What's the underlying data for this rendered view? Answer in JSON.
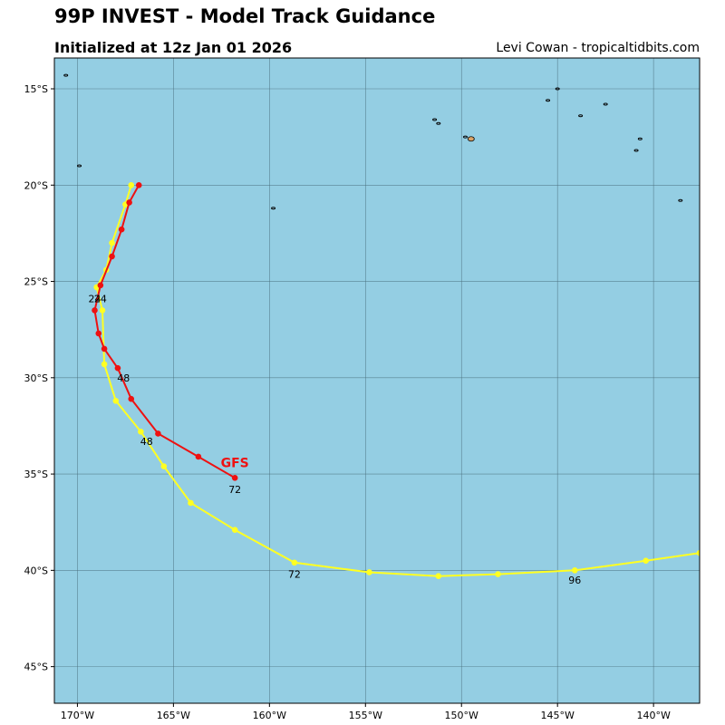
{
  "title": "99P INVEST - Model Track Guidance",
  "subtitle": "Initialized at 12z Jan 01 2026",
  "credit": "Levi Cowan - tropicaltidbits.com",
  "colors": {
    "ocean": "#94cee3",
    "land": "#d9a267",
    "grid": "#4a6f7d",
    "red": "#ee1111",
    "yellow": "#ffff22"
  },
  "map": {
    "lon_range": [
      -171.2,
      -137.6
    ],
    "lat_range": [
      -46.9,
      -13.4
    ]
  },
  "lon_ticks": [
    {
      "lon": -170,
      "label": "170°W"
    },
    {
      "lon": -165,
      "label": "165°W"
    },
    {
      "lon": -160,
      "label": "160°W"
    },
    {
      "lon": -155,
      "label": "155°W"
    },
    {
      "lon": -150,
      "label": "150°W"
    },
    {
      "lon": -145,
      "label": "145°W"
    },
    {
      "lon": -140,
      "label": "140°W"
    }
  ],
  "lat_ticks": [
    {
      "lat": -15,
      "label": "15°S"
    },
    {
      "lat": -20,
      "label": "20°S"
    },
    {
      "lat": -25,
      "label": "25°S"
    },
    {
      "lat": -30,
      "label": "30°S"
    },
    {
      "lat": -35,
      "label": "35°S"
    },
    {
      "lat": -40,
      "label": "40°S"
    },
    {
      "lat": -45,
      "label": "45°S"
    }
  ],
  "tracks": [
    {
      "name": "yellow-track",
      "color": "#ffff22",
      "points": [
        [
          -167.2,
          -20.0
        ],
        [
          -167.5,
          -21.0
        ],
        [
          -168.2,
          -23.0
        ],
        [
          -168.5,
          -24.4
        ],
        [
          -169.0,
          -25.3
        ],
        [
          -168.7,
          -26.5
        ],
        [
          -168.6,
          -29.3
        ],
        [
          -168.0,
          -31.2
        ],
        [
          -166.7,
          -32.8
        ],
        [
          -165.5,
          -34.6
        ],
        [
          -164.1,
          -36.5
        ],
        [
          -161.8,
          -37.9
        ],
        [
          -158.7,
          -39.6
        ],
        [
          -154.8,
          -40.1
        ],
        [
          -151.2,
          -40.3
        ],
        [
          -148.1,
          -40.2
        ],
        [
          -144.1,
          -40.0
        ],
        [
          -140.4,
          -39.5
        ],
        [
          -137.6,
          -39.1
        ]
      ]
    },
    {
      "name": "gfs-track",
      "color": "#ee1111",
      "points": [
        [
          -166.8,
          -20.0
        ],
        [
          -167.3,
          -20.9
        ],
        [
          -167.7,
          -22.3
        ],
        [
          -168.2,
          -23.7
        ],
        [
          -168.8,
          -25.2
        ],
        [
          -169.1,
          -26.5
        ],
        [
          -168.9,
          -27.7
        ],
        [
          -168.6,
          -28.5
        ],
        [
          -167.9,
          -29.5
        ],
        [
          -167.2,
          -31.1
        ],
        [
          -165.8,
          -32.9
        ],
        [
          -163.7,
          -34.1
        ],
        [
          -161.8,
          -35.2
        ]
      ]
    }
  ],
  "labels": [
    {
      "text": "24",
      "lon": -169.1,
      "lat": -25.9
    },
    {
      "text": "24",
      "lon": -168.8,
      "lat": -25.9
    },
    {
      "text": "48",
      "lon": -167.6,
      "lat": -30.0
    },
    {
      "text": "48",
      "lon": -166.4,
      "lat": -33.3
    },
    {
      "text": "72",
      "lon": -161.8,
      "lat": -35.8
    },
    {
      "text": "72",
      "lon": -158.7,
      "lat": -40.2
    },
    {
      "text": "96",
      "lon": -144.1,
      "lat": -40.5
    }
  ],
  "model_label": {
    "text": "GFS",
    "lon": -161.8,
    "lat": -34.4,
    "color": "#ee1111"
  },
  "islands": [
    {
      "lon": -170.6,
      "lat": -14.3
    },
    {
      "lon": -169.9,
      "lat": -19.0
    },
    {
      "lon": -159.8,
      "lat": -21.2
    },
    {
      "lon": -151.4,
      "lat": -16.6
    },
    {
      "lon": -151.2,
      "lat": -16.8
    },
    {
      "lon": -149.8,
      "lat": -17.5
    },
    {
      "lon": -145.5,
      "lat": -15.6
    },
    {
      "lon": -145.0,
      "lat": -15.0
    },
    {
      "lon": -143.8,
      "lat": -16.4
    },
    {
      "lon": -142.5,
      "lat": -15.8
    },
    {
      "lon": -140.7,
      "lat": -17.6
    },
    {
      "lon": -140.9,
      "lat": -18.2
    },
    {
      "lon": -138.6,
      "lat": -20.8
    }
  ],
  "land": [
    {
      "lon": -149.5,
      "lat": -17.6
    }
  ]
}
